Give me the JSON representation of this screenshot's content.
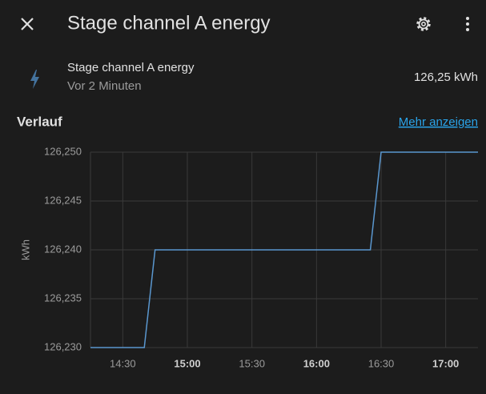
{
  "header": {
    "title": "Stage channel A energy"
  },
  "entity": {
    "name": "Stage channel A energy",
    "last_changed": "Vor 2 Minuten",
    "state": "126,25 kWh"
  },
  "history": {
    "title": "Verlauf",
    "more_link": "Mehr anzeigen"
  },
  "chart_data": {
    "type": "line",
    "y_label": "kWh",
    "x": [
      855,
      880,
      885,
      985,
      990,
      1035
    ],
    "series": [
      {
        "name": "Stage channel A energy",
        "color": "#5a97cf",
        "values": [
          126.23,
          126.23,
          126.24,
          126.24,
          126.25,
          126.25
        ]
      }
    ],
    "xlim": [
      855,
      1035
    ],
    "xticks": [
      {
        "value": 870,
        "label": "14:30"
      },
      {
        "value": 900,
        "label": "15:00",
        "bold": true
      },
      {
        "value": 930,
        "label": "15:30"
      },
      {
        "value": 960,
        "label": "16:00",
        "bold": true
      },
      {
        "value": 990,
        "label": "16:30"
      },
      {
        "value": 1020,
        "label": "17:00",
        "bold": true
      }
    ],
    "ylim": [
      126.23,
      126.25
    ],
    "yticks": [
      {
        "value": 126.23,
        "label": "126,230"
      },
      {
        "value": 126.235,
        "label": "126,235"
      },
      {
        "value": 126.24,
        "label": "126,240"
      },
      {
        "value": 126.245,
        "label": "126,245"
      },
      {
        "value": 126.25,
        "label": "126,250"
      }
    ],
    "grid": true
  }
}
